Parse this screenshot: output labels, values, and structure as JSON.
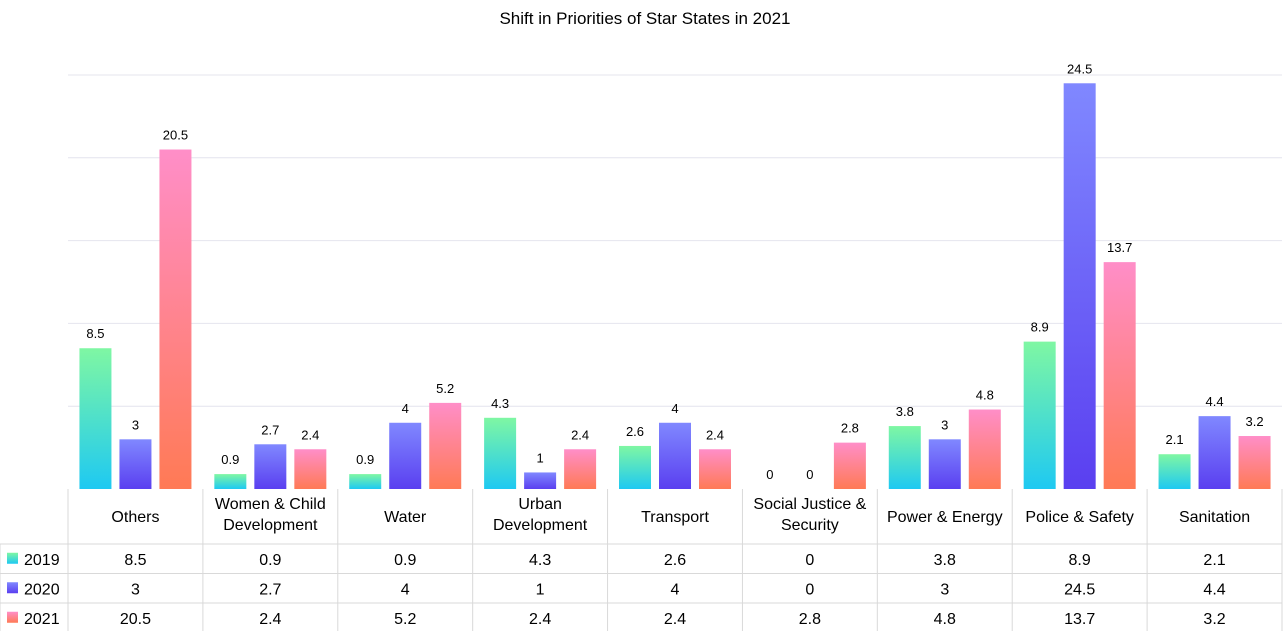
{
  "chart_data": {
    "type": "bar",
    "title": "Shift in Priorities of Star States in 2021",
    "categories": [
      [
        "Others"
      ],
      [
        "Women & Child",
        "Development"
      ],
      [
        "Water"
      ],
      [
        "Urban",
        "Development"
      ],
      [
        "Transport"
      ],
      [
        "Social Justice &",
        "Security"
      ],
      [
        "Power & Energy"
      ],
      [
        "Police & Safety"
      ],
      [
        "Sanitation"
      ]
    ],
    "series": [
      {
        "name": "2019",
        "values": [
          8.5,
          0.9,
          0.9,
          4.3,
          2.6,
          0,
          3.8,
          8.9,
          2.1
        ],
        "labels": [
          "8.5",
          "0.9",
          "0.9",
          "4.3",
          "2.6",
          "0",
          "3.8",
          "8.9",
          "2.1"
        ],
        "color_top": "#7ff7a3",
        "color_bottom": "#1ec9f2"
      },
      {
        "name": "2020",
        "values": [
          3,
          2.7,
          4,
          1,
          4,
          0,
          3,
          24.5,
          4.4
        ],
        "labels": [
          "3",
          "2.7",
          "4",
          "1",
          "4",
          "0",
          "3",
          "24.5",
          "4.4"
        ],
        "color_top": "#8088ff",
        "color_bottom": "#5a3ff0"
      },
      {
        "name": "2021",
        "values": [
          20.5,
          2.4,
          5.2,
          2.4,
          2.4,
          2.8,
          4.8,
          13.7,
          3.2
        ],
        "labels": [
          "20.5",
          "2.4",
          "5.2",
          "2.4",
          "2.4",
          "2.8",
          "4.8",
          "13.7",
          "3.2"
        ],
        "color_top": "#ff8ec8",
        "color_bottom": "#ff7a55"
      }
    ],
    "ylim": [
      0,
      25
    ],
    "grid": true,
    "data_table": true,
    "legend": "in data table"
  }
}
